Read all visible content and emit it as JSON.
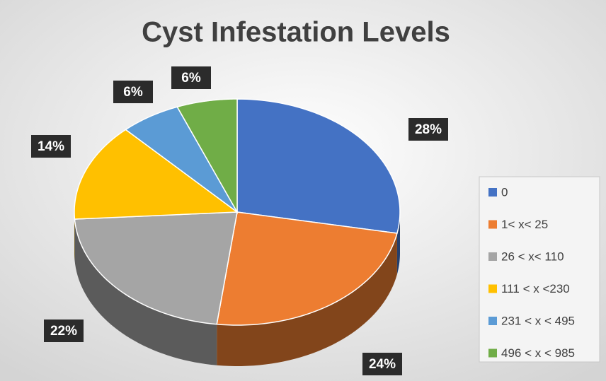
{
  "chart_data": {
    "type": "pie",
    "title": "Cyst Infestation Levels",
    "categories": [
      "0",
      "1< x< 25",
      "26 < x< 110",
      "111 < x <230",
      "231 < x < 495",
      "496 < x < 985"
    ],
    "values": [
      28,
      24,
      22,
      14,
      6,
      6
    ],
    "value_labels": [
      "28%",
      "24%",
      "22%",
      "14%",
      "6%",
      "6%"
    ],
    "colors": [
      "#4472c4",
      "#ed7d31",
      "#a5a5a5",
      "#ffc000",
      "#5b9bd5",
      "#70ad47"
    ],
    "legend": "right"
  }
}
